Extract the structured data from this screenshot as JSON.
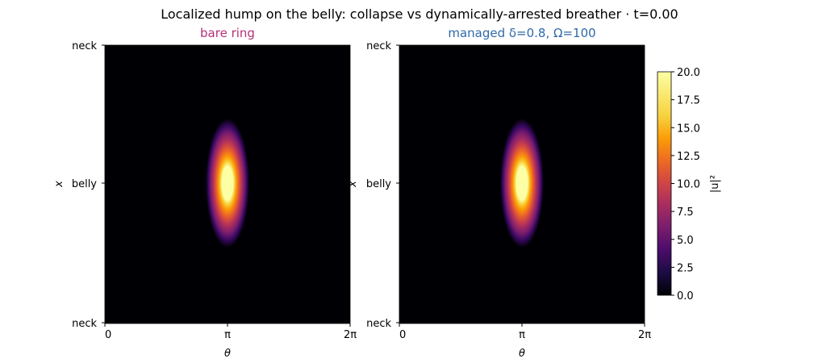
{
  "chart_data": {
    "type": "heatmap",
    "title": "Localized hump on the belly: collapse vs dynamically-arrested breather   ·   t=0.00",
    "colormap": "inferno",
    "colorbar": {
      "label": "|u|²",
      "min": 0.0,
      "max": 20.0,
      "ticks": [
        "0.0",
        "2.5",
        "5.0",
        "7.5",
        "10.0",
        "12.5",
        "15.0",
        "17.5",
        "20.0"
      ]
    },
    "panels": [
      {
        "name": "bare-ring",
        "title": "bare ring",
        "title_color": "#b5307a",
        "xlabel": "θ",
        "ylabel": "x",
        "xlim": [
          0,
          6.2832
        ],
        "xticks": [
          "0",
          "π",
          "2π"
        ],
        "yticks": [
          "neck",
          "belly",
          "neck"
        ],
        "field": {
          "peak_theta": 3.1416,
          "peak_x": "belly",
          "peak_value": 20.0,
          "saturated": true
        }
      },
      {
        "name": "managed",
        "title": "managed  δ=0.8, Ω=100",
        "title_color": "#2f6aa8",
        "xlabel": "θ",
        "ylabel": "x",
        "xlim": [
          0,
          6.2832
        ],
        "xticks": [
          "0",
          "π",
          "2π"
        ],
        "yticks": [
          "neck",
          "belly",
          "neck"
        ],
        "field": {
          "peak_theta": 3.1416,
          "peak_x": "belly",
          "peak_value": 20.0,
          "saturated": true
        }
      }
    ]
  }
}
